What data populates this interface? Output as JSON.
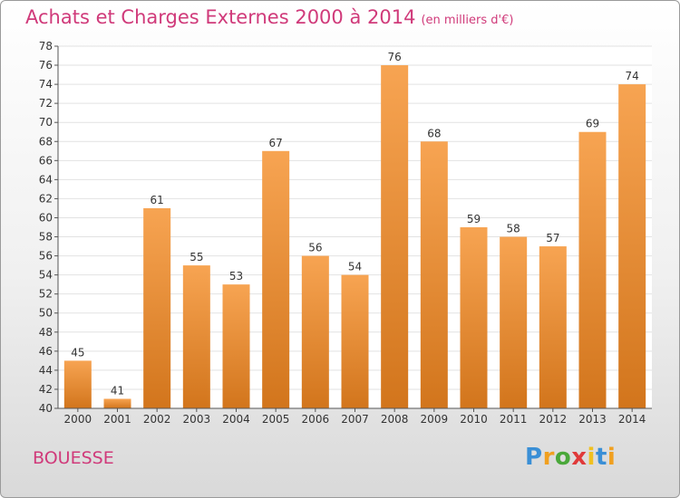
{
  "chart_data": {
    "type": "bar",
    "title": "Achats et Charges Externes 2000 à 2014",
    "subtitle": "(en milliers d'€)",
    "categories": [
      "2000",
      "2001",
      "2002",
      "2003",
      "2004",
      "2005",
      "2006",
      "2007",
      "2008",
      "2009",
      "2010",
      "2011",
      "2012",
      "2013",
      "2014"
    ],
    "values": [
      45,
      41,
      61,
      55,
      53,
      67,
      56,
      54,
      76,
      68,
      59,
      58,
      57,
      69,
      74
    ],
    "ylim": [
      40,
      78
    ],
    "ytick_step": 2,
    "grid": true,
    "bar_color_top": "#f7a452",
    "bar_color_bottom": "#d2751c"
  },
  "commune": "BOUESSE",
  "logo": {
    "letters": [
      "P",
      "r",
      "o",
      "x",
      "i",
      "t",
      "i"
    ],
    "colors": [
      "#3a8fd6",
      "#f0a020",
      "#4aa83a",
      "#e03a3a",
      "#f0c020",
      "#3a8fd6",
      "#f0a020"
    ]
  }
}
